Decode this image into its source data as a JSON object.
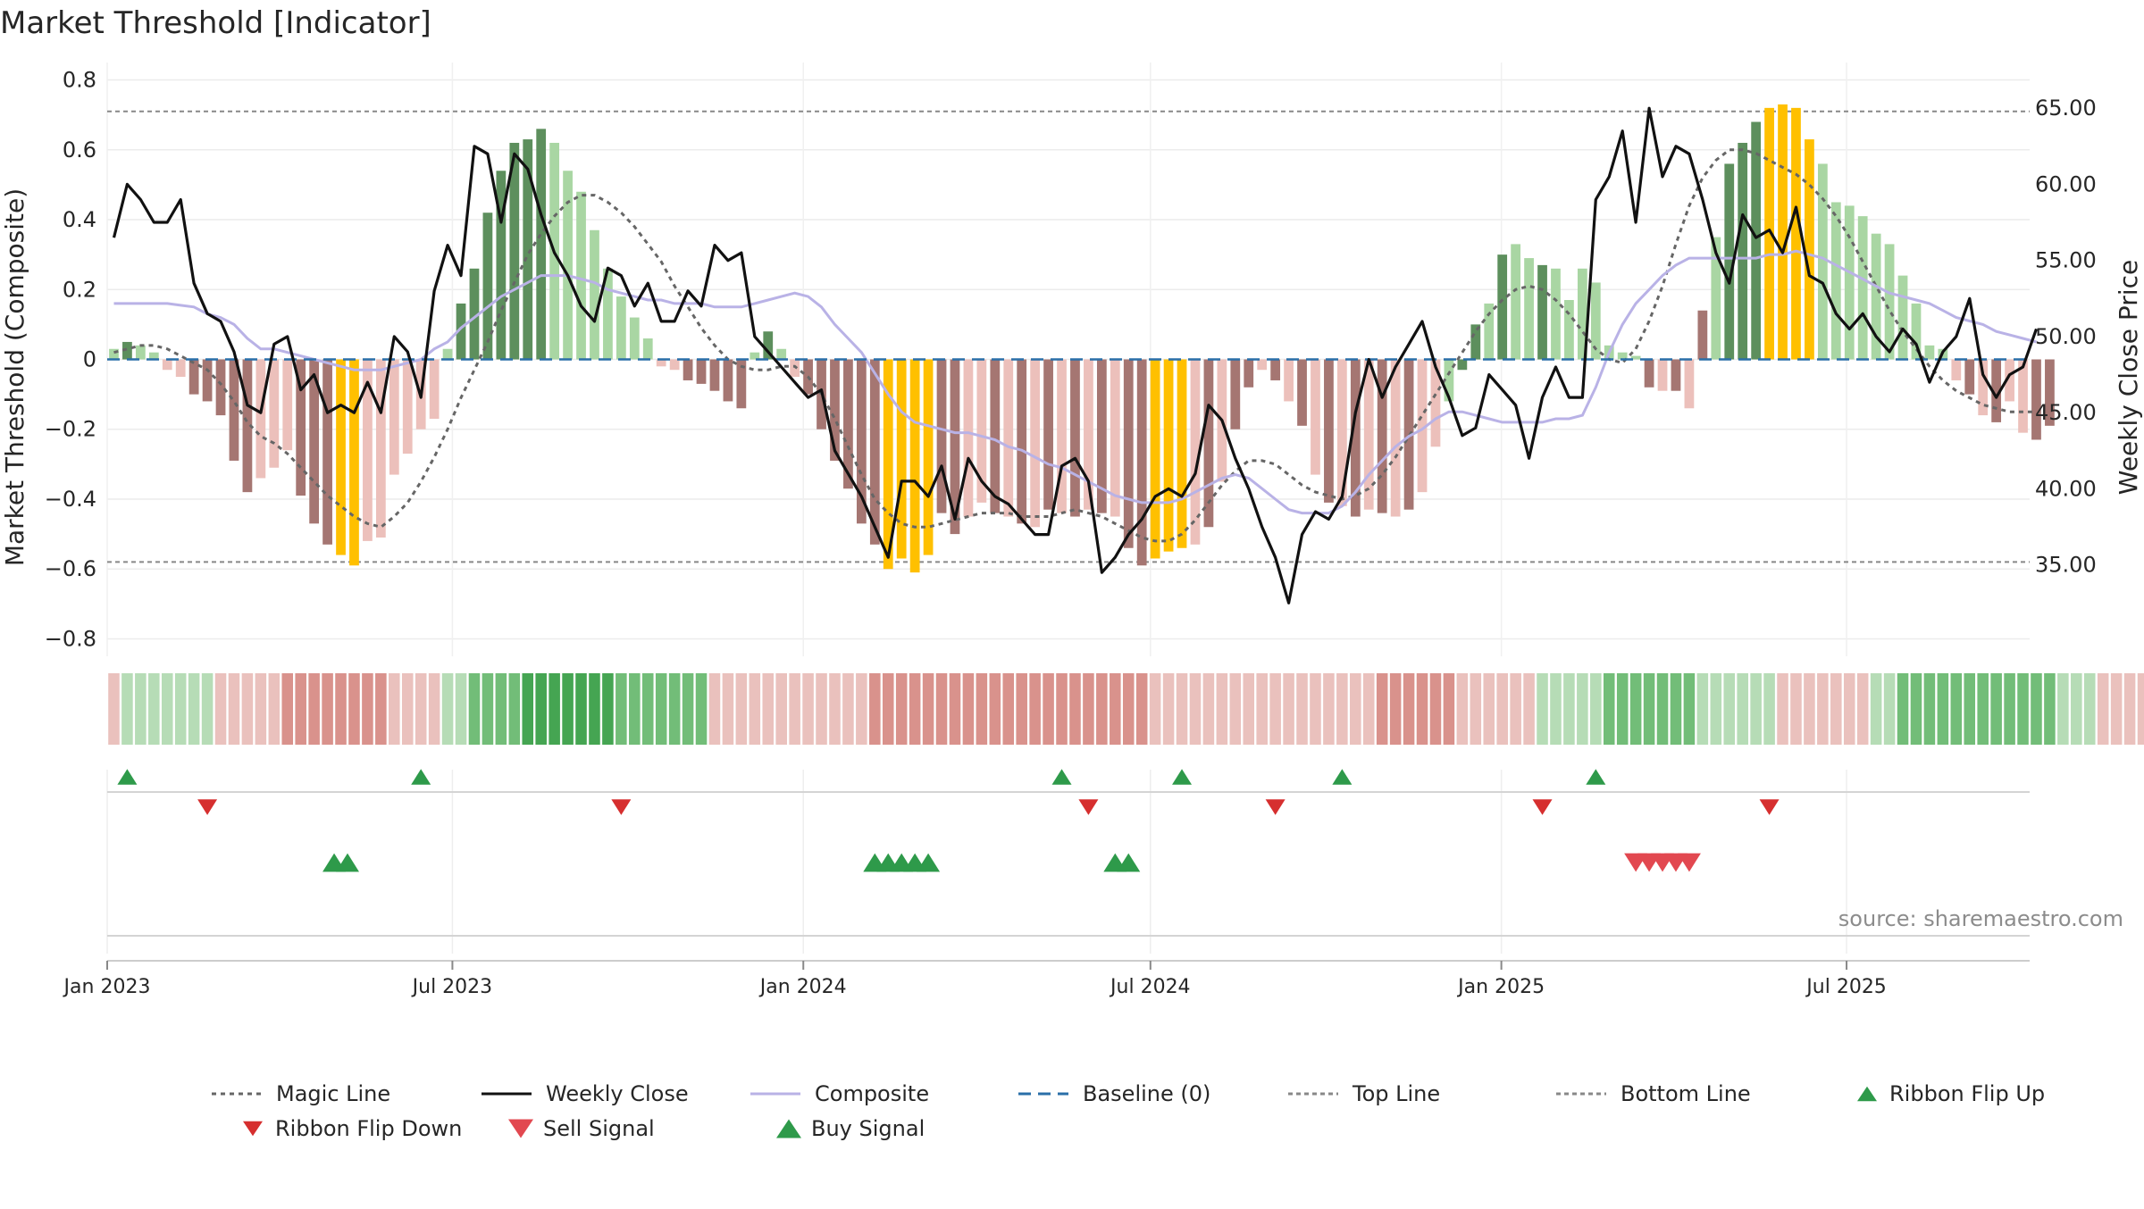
{
  "title": "Market Threshold [Indicator]",
  "source": "source: sharemaestro.com",
  "colors": {
    "bar_pos_strong": "#5d8f5d",
    "bar_pos_weak": "#a9d6a3",
    "bar_neg_strong": "#a57672",
    "bar_neg_weak": "#ecc0bb",
    "bar_extreme": "#ffc000",
    "weekly_close": "#111111",
    "composite": "#b9b2e6",
    "magic_line": "#666666",
    "baseline": "#2a6fa8",
    "ref_lines": "#888888",
    "ribbon_up": "#2e9a4a",
    "ribbon_down": "#d62f2f",
    "sell_signal": "#e24850",
    "buy_signal": "#2e9a4a"
  },
  "chart_data": {
    "type": "bar",
    "x_axis": {
      "type": "date",
      "start": "2023-01-01",
      "end": "2025-10-05",
      "tick_labels": [
        "Jan 2023",
        "Jul 2023",
        "Jan 2024",
        "Jul 2024",
        "Jan 2025",
        "Jul 2025"
      ],
      "tick_dates": [
        "2023-01-01",
        "2023-07-01",
        "2024-01-01",
        "2024-07-01",
        "2025-01-01",
        "2025-07-01"
      ]
    },
    "y_left": {
      "label": "Market Threshold (Composite)",
      "range": [
        -0.85,
        0.85
      ],
      "ticks": [
        0.8,
        0.6,
        0.4,
        0.2,
        0,
        -0.2,
        -0.4,
        -0.6,
        -0.8
      ],
      "tick_labels": [
        "0.8",
        "0.6",
        "0.4",
        "0.2",
        "0",
        "−0.2",
        "−0.4",
        "−0.6",
        "−0.8"
      ]
    },
    "y_right": {
      "label": "Weekly Close Price",
      "range": [
        29.0,
        68.0
      ],
      "ticks": [
        65,
        60,
        55,
        50,
        45,
        40,
        35
      ],
      "tick_labels": [
        "65.00",
        "60.00",
        "55.00",
        "50.00",
        "45.00",
        "40.00",
        "35.00"
      ]
    },
    "grid": true,
    "legend_position": "bottom",
    "legend": [
      {
        "name": "Magic Line",
        "kind": "dotted-line"
      },
      {
        "name": "Weekly Close",
        "kind": "line"
      },
      {
        "name": "Composite",
        "kind": "line"
      },
      {
        "name": "Baseline (0)",
        "kind": "dashed-line"
      },
      {
        "name": "Top Line",
        "kind": "dashed-line"
      },
      {
        "name": "Bottom Line",
        "kind": "dashed-line"
      },
      {
        "name": "Ribbon Flip Up",
        "kind": "triangle-up"
      },
      {
        "name": "Ribbon Flip Down",
        "kind": "triangle-down"
      },
      {
        "name": "Sell Signal",
        "kind": "triangle-down"
      },
      {
        "name": "Buy Signal",
        "kind": "triangle-up"
      }
    ],
    "top_line": 0.71,
    "bottom_line": -0.58,
    "baseline": 0,
    "weeks": 144,
    "threshold_bars": [
      0.03,
      0.05,
      0.04,
      0.02,
      -0.03,
      -0.05,
      -0.1,
      -0.12,
      -0.16,
      -0.29,
      -0.38,
      -0.34,
      -0.31,
      -0.26,
      -0.39,
      -0.47,
      -0.53,
      -0.56,
      -0.59,
      -0.52,
      -0.51,
      -0.33,
      -0.27,
      -0.2,
      -0.17,
      0.03,
      0.16,
      0.26,
      0.42,
      0.54,
      0.62,
      0.63,
      0.66,
      0.62,
      0.54,
      0.48,
      0.37,
      0.26,
      0.18,
      0.12,
      0.06,
      -0.02,
      -0.03,
      -0.06,
      -0.07,
      -0.09,
      -0.12,
      -0.14,
      0.02,
      0.08,
      0.03,
      -0.05,
      -0.1,
      -0.2,
      -0.29,
      -0.37,
      -0.47,
      -0.53,
      -0.6,
      -0.57,
      -0.61,
      -0.56,
      -0.44,
      -0.5,
      -0.45,
      -0.41,
      -0.44,
      -0.45,
      -0.47,
      -0.48,
      -0.43,
      -0.44,
      -0.45,
      -0.43,
      -0.44,
      -0.45,
      -0.54,
      -0.59,
      -0.57,
      -0.55,
      -0.54,
      -0.53,
      -0.48,
      -0.35,
      -0.2,
      -0.08,
      -0.03,
      -0.06,
      -0.12,
      -0.19,
      -0.33,
      -0.41,
      -0.42,
      -0.45,
      -0.43,
      -0.44,
      -0.45,
      -0.43,
      -0.38,
      -0.25,
      -0.12,
      -0.03,
      0.1,
      0.16,
      0.3,
      0.33,
      0.29,
      0.27,
      0.26,
      0.17,
      0.26,
      0.22,
      0.04,
      0.02,
      0.01,
      -0.08,
      -0.09,
      -0.09,
      -0.14,
      0.14,
      0.35,
      0.56,
      0.62,
      0.68,
      0.72,
      0.73,
      0.72,
      0.63,
      0.56,
      0.45,
      0.44,
      0.41,
      0.36,
      0.33,
      0.24,
      0.16,
      0.04,
      0.03,
      -0.06,
      -0.1,
      -0.16,
      -0.18,
      -0.12,
      -0.21,
      -0.23,
      -0.19
    ],
    "bar_classes": [
      "pw",
      "ps",
      "pw",
      "pw",
      "nw",
      "nw",
      "ns",
      "ns",
      "ns",
      "ns",
      "ns",
      "nw",
      "nw",
      "nw",
      "ns",
      "ns",
      "ns",
      "ex",
      "ex",
      "nw",
      "nw",
      "nw",
      "nw",
      "nw",
      "nw",
      "pw",
      "ps",
      "ps",
      "ps",
      "ps",
      "ps",
      "ps",
      "ps",
      "pw",
      "pw",
      "pw",
      "pw",
      "pw",
      "pw",
      "pw",
      "pw",
      "nw",
      "nw",
      "ns",
      "ns",
      "ns",
      "ns",
      "ns",
      "pw",
      "ps",
      "pw",
      "nw",
      "ns",
      "ns",
      "ns",
      "ns",
      "ns",
      "ns",
      "ex",
      "ex",
      "ex",
      "ex",
      "ns",
      "ns",
      "nw",
      "nw",
      "ns",
      "nw",
      "ns",
      "nw",
      "ns",
      "nw",
      "ns",
      "nw",
      "ns",
      "nw",
      "ns",
      "ns",
      "ex",
      "ex",
      "ex",
      "nw",
      "ns",
      "nw",
      "ns",
      "ns",
      "nw",
      "ns",
      "nw",
      "ns",
      "nw",
      "ns",
      "nw",
      "ns",
      "nw",
      "ns",
      "nw",
      "ns",
      "nw",
      "nw",
      "pw",
      "ps",
      "ps",
      "pw",
      "ps",
      "pw",
      "pw",
      "ps",
      "pw",
      "pw",
      "pw",
      "pw",
      "pw",
      "pw",
      "pw",
      "ns",
      "nw",
      "ns",
      "nw",
      "ns",
      "pw",
      "ps",
      "ps",
      "ps",
      "ex",
      "ex",
      "ex",
      "ex",
      "pw",
      "pw",
      "pw",
      "pw",
      "pw",
      "pw",
      "pw",
      "pw",
      "pw",
      "pw",
      "nw",
      "ns",
      "nw",
      "ns",
      "nw",
      "nw",
      "ns",
      "ns",
      "nw"
    ],
    "weekly_close": [
      56.5,
      60.0,
      59.0,
      57.5,
      57.5,
      59.0,
      53.5,
      51.5,
      51.0,
      49.0,
      45.5,
      45.0,
      49.5,
      50.0,
      46.5,
      47.5,
      45.0,
      45.5,
      45.0,
      47.0,
      45.0,
      50.0,
      49.0,
      46.0,
      53.0,
      56.0,
      54.0,
      62.5,
      62.0,
      57.5,
      62.0,
      61.0,
      58.0,
      55.5,
      54.0,
      52.0,
      51.0,
      54.5,
      54.0,
      52.0,
      53.5,
      51.0,
      51.0,
      53.0,
      52.0,
      56.0,
      55.0,
      55.5,
      50.0,
      49.0,
      48.0,
      47.0,
      46.0,
      46.5,
      42.5,
      41.0,
      39.5,
      37.5,
      35.5,
      40.5,
      40.5,
      39.5,
      41.5,
      38.0,
      42.0,
      40.5,
      39.5,
      39.0,
      38.0,
      37.0,
      37.0,
      41.5,
      42.0,
      40.5,
      34.5,
      35.5,
      37.0,
      38.0,
      39.5,
      40.0,
      39.5,
      41.0,
      45.5,
      44.5,
      42.0,
      40.0,
      37.5,
      35.5,
      32.5,
      37.0,
      38.5,
      38.0,
      39.5,
      45.0,
      48.5,
      46.0,
      48.0,
      49.5,
      51.0,
      48.0,
      46.0,
      43.5,
      44.0,
      47.5,
      46.5,
      45.5,
      42.0,
      46.0,
      48.0,
      46.0,
      46.0,
      59.0,
      60.5,
      63.5,
      57.5,
      65.0,
      60.5,
      62.5,
      62.0,
      59.0,
      55.5,
      53.5,
      58.0,
      56.5,
      57.0,
      55.5,
      58.5,
      54.0,
      53.5,
      51.5,
      50.5,
      51.5,
      50.0,
      49.0,
      50.5,
      49.5,
      47.0,
      49.0,
      50.0,
      52.5,
      47.5,
      46.0,
      47.5,
      48.0,
      50.5
    ],
    "composite": [
      0.16,
      0.16,
      0.16,
      0.16,
      0.16,
      0.155,
      0.15,
      0.13,
      0.12,
      0.1,
      0.06,
      0.03,
      0.03,
      0.02,
      0.01,
      0,
      -0.01,
      -0.02,
      -0.03,
      -0.03,
      -0.03,
      -0.02,
      -0.01,
      0,
      0.03,
      0.05,
      0.09,
      0.12,
      0.15,
      0.18,
      0.2,
      0.22,
      0.24,
      0.24,
      0.24,
      0.23,
      0.22,
      0.2,
      0.19,
      0.18,
      0.17,
      0.17,
      0.16,
      0.16,
      0.16,
      0.15,
      0.15,
      0.15,
      0.16,
      0.17,
      0.18,
      0.19,
      0.18,
      0.15,
      0.1,
      0.06,
      0.02,
      -0.04,
      -0.1,
      -0.15,
      -0.18,
      -0.19,
      -0.2,
      -0.21,
      -0.21,
      -0.22,
      -0.23,
      -0.25,
      -0.26,
      -0.28,
      -0.3,
      -0.31,
      -0.33,
      -0.35,
      -0.37,
      -0.39,
      -0.4,
      -0.41,
      -0.41,
      -0.41,
      -0.4,
      -0.38,
      -0.36,
      -0.34,
      -0.33,
      -0.34,
      -0.37,
      -0.4,
      -0.43,
      -0.44,
      -0.44,
      -0.44,
      -0.42,
      -0.38,
      -0.33,
      -0.29,
      -0.25,
      -0.22,
      -0.2,
      -0.17,
      -0.15,
      -0.15,
      -0.16,
      -0.17,
      -0.18,
      -0.18,
      -0.18,
      -0.18,
      -0.17,
      -0.17,
      -0.16,
      -0.08,
      0.02,
      0.1,
      0.16,
      0.2,
      0.24,
      0.27,
      0.29,
      0.29,
      0.29,
      0.29,
      0.29,
      0.29,
      0.3,
      0.3,
      0.31,
      0.3,
      0.29,
      0.27,
      0.25,
      0.23,
      0.21,
      0.19,
      0.18,
      0.17,
      0.16,
      0.14,
      0.12,
      0.11,
      0.1,
      0.08,
      0.07,
      0.06,
      0.05
    ],
    "magic_line": [
      0.02,
      0.03,
      0.04,
      0.04,
      0.03,
      0.01,
      -0.01,
      -0.03,
      -0.07,
      -0.12,
      -0.18,
      -0.22,
      -0.24,
      -0.27,
      -0.31,
      -0.35,
      -0.39,
      -0.42,
      -0.45,
      -0.47,
      -0.48,
      -0.45,
      -0.41,
      -0.35,
      -0.28,
      -0.2,
      -0.11,
      -0.03,
      0.05,
      0.14,
      0.22,
      0.3,
      0.36,
      0.41,
      0.45,
      0.47,
      0.47,
      0.45,
      0.42,
      0.38,
      0.33,
      0.28,
      0.21,
      0.15,
      0.09,
      0.04,
      0,
      -0.02,
      -0.03,
      -0.03,
      -0.02,
      -0.02,
      -0.05,
      -0.1,
      -0.17,
      -0.25,
      -0.33,
      -0.4,
      -0.44,
      -0.47,
      -0.48,
      -0.48,
      -0.47,
      -0.46,
      -0.45,
      -0.44,
      -0.44,
      -0.44,
      -0.45,
      -0.45,
      -0.45,
      -0.44,
      -0.43,
      -0.44,
      -0.45,
      -0.47,
      -0.49,
      -0.51,
      -0.52,
      -0.52,
      -0.5,
      -0.46,
      -0.41,
      -0.36,
      -0.32,
      -0.29,
      -0.29,
      -0.3,
      -0.33,
      -0.36,
      -0.38,
      -0.39,
      -0.4,
      -0.39,
      -0.37,
      -0.33,
      -0.28,
      -0.22,
      -0.16,
      -0.1,
      -0.04,
      0.02,
      0.08,
      0.13,
      0.17,
      0.2,
      0.21,
      0.2,
      0.17,
      0.13,
      0.08,
      0.03,
      0,
      -0.01,
      0.03,
      0.11,
      0.21,
      0.33,
      0.44,
      0.52,
      0.57,
      0.6,
      0.6,
      0.59,
      0.57,
      0.55,
      0.53,
      0.5,
      0.46,
      0.41,
      0.35,
      0.28,
      0.21,
      0.14,
      0.08,
      0.03,
      -0.02,
      -0.06,
      -0.09,
      -0.11,
      -0.13,
      -0.14,
      -0.15,
      -0.15,
      -0.15
    ],
    "ribbon_levels": [
      -1,
      1,
      1,
      1,
      1,
      1,
      1,
      1,
      -1,
      -1,
      -1,
      -1,
      -1,
      -2,
      -2,
      -2,
      -2,
      -2,
      -2,
      -2,
      -2,
      -1,
      -1,
      -1,
      -1,
      1,
      1,
      2,
      2,
      2,
      2,
      3,
      3,
      3,
      3,
      3,
      3,
      3,
      2,
      2,
      2,
      2,
      2,
      2,
      2,
      -1,
      -1,
      -1,
      -1,
      -1,
      -1,
      -1,
      -1,
      -1,
      -1,
      -1,
      -1,
      -2,
      -2,
      -2,
      -2,
      -2,
      -2,
      -2,
      -2,
      -2,
      -2,
      -2,
      -2,
      -2,
      -2,
      -2,
      -2,
      -2,
      -2,
      -2,
      -2,
      -2,
      -1,
      -1,
      -1,
      -1,
      -1,
      -1,
      -1,
      -1,
      -1,
      -1,
      -1,
      -1,
      -1,
      -1,
      -1,
      -1,
      -1,
      -2,
      -2,
      -2,
      -2,
      -2,
      -2,
      -1,
      -1,
      -1,
      -1,
      -1,
      -1,
      1,
      1,
      1,
      1,
      1,
      2,
      2,
      2,
      2,
      2,
      2,
      2,
      1,
      1,
      1,
      1,
      1,
      1,
      -1,
      -1,
      -1,
      -1,
      -1,
      -1,
      -1,
      1,
      1,
      2,
      2,
      2,
      2,
      2,
      2,
      2,
      2,
      2,
      2,
      2,
      2,
      1,
      1,
      1,
      -1,
      -1,
      -1,
      -1,
      -2,
      -2,
      -2,
      -2,
      -2
    ],
    "ribbon_flip_up_weeks": [
      1,
      23,
      71,
      80,
      92,
      111
    ],
    "ribbon_flip_down_weeks": [
      7,
      38,
      73,
      87,
      107,
      124
    ],
    "buy_signal_weeks": [
      16.5,
      17.5,
      57,
      58,
      59,
      60,
      61,
      75,
      76
    ],
    "sell_signal_weeks": [
      114,
      115,
      116,
      117,
      118
    ]
  }
}
